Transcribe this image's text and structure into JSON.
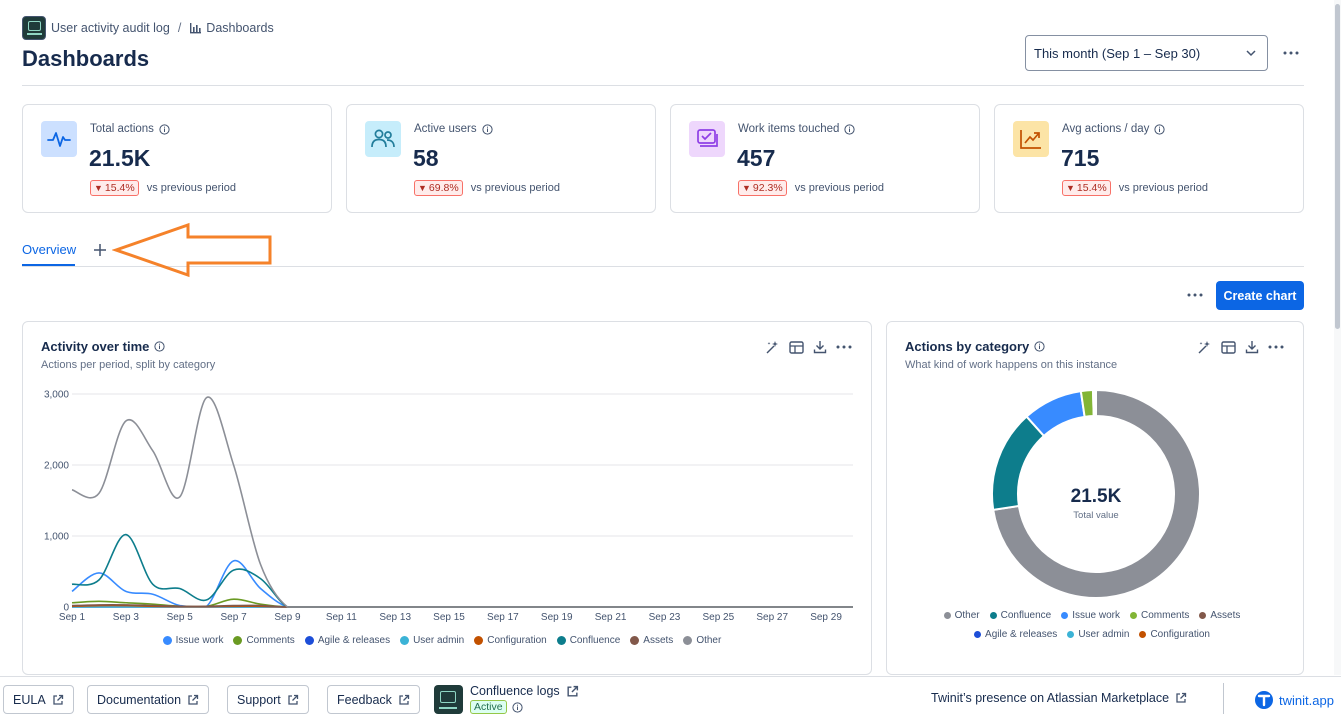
{
  "breadcrumb": {
    "app": "User activity audit log",
    "separator": "/",
    "current": "Dashboards"
  },
  "page": {
    "title": "Dashboards"
  },
  "date_range": {
    "selected": "This month (Sep 1 – Sep 30)"
  },
  "kpis": [
    {
      "label": "Total actions",
      "value": "21.5K",
      "delta": "15.4%",
      "delta_direction": "down",
      "comparison": "vs previous period",
      "icon": "activity-pulse-icon",
      "icon_bg": "#cce0ff",
      "icon_color": "#0c66e4"
    },
    {
      "label": "Active users",
      "value": "58",
      "delta": "69.8%",
      "delta_direction": "down",
      "comparison": "vs previous period",
      "icon": "people-icon",
      "icon_bg": "#c6edfb",
      "icon_color": "#227d9b"
    },
    {
      "label": "Work items touched",
      "value": "457",
      "delta": "92.3%",
      "delta_direction": "down",
      "comparison": "vs previous period",
      "icon": "work-items-icon",
      "icon_bg": "#eed7fc",
      "icon_color": "#8f3fe6"
    },
    {
      "label": "Avg actions / day",
      "value": "715",
      "delta": "15.4%",
      "delta_direction": "down",
      "comparison": "vs previous period",
      "icon": "trend-up-icon",
      "icon_bg": "#fce4a6",
      "icon_color": "#c25100"
    }
  ],
  "tabs": [
    {
      "label": "Overview",
      "active": true
    }
  ],
  "toolbar": {
    "create_chart_label": "Create chart"
  },
  "colors": {
    "accent": "#0c66e4",
    "annotation_arrow": "#f5822a"
  },
  "chart_data": [
    {
      "type": "line",
      "title": "Activity over time",
      "subtitle": "Actions per period, split by category",
      "x": [
        "Sep 1",
        "Sep 2",
        "Sep 3",
        "Sep 4",
        "Sep 5",
        "Sep 6",
        "Sep 7",
        "Sep 8",
        "Sep 9",
        "Sep 10",
        "Sep 11",
        "Sep 12",
        "Sep 13",
        "Sep 14",
        "Sep 15",
        "Sep 16",
        "Sep 17",
        "Sep 18",
        "Sep 19",
        "Sep 20",
        "Sep 21",
        "Sep 22",
        "Sep 23",
        "Sep 24",
        "Sep 25",
        "Sep 26",
        "Sep 27",
        "Sep 28",
        "Sep 29",
        "Sep 30"
      ],
      "x_tick_labels": [
        "Sep 1",
        "Sep 3",
        "Sep 5",
        "Sep 7",
        "Sep 9",
        "Sep 11",
        "Sep 13",
        "Sep 15",
        "Sep 17",
        "Sep 19",
        "Sep 21",
        "Sep 23",
        "Sep 25",
        "Sep 27",
        "Sep 29"
      ],
      "y_ticks": [
        0,
        1000,
        2000,
        3000
      ],
      "y_tick_labels": [
        "0",
        "1,000",
        "2,000",
        "3,000"
      ],
      "ylim": [
        0,
        3000
      ],
      "grid": true,
      "legend_position": "bottom",
      "series": [
        {
          "name": "Issue work",
          "color": "#388bff",
          "values": [
            220,
            480,
            220,
            180,
            20,
            10,
            650,
            260,
            0,
            0,
            0,
            0,
            0,
            0,
            0,
            0,
            0,
            0,
            0,
            0,
            0,
            0,
            0,
            0,
            0,
            0,
            0,
            0,
            0,
            0
          ]
        },
        {
          "name": "Comments",
          "color": "#6a9a23",
          "values": [
            60,
            80,
            60,
            40,
            10,
            10,
            110,
            40,
            0,
            0,
            0,
            0,
            0,
            0,
            0,
            0,
            0,
            0,
            0,
            0,
            0,
            0,
            0,
            0,
            0,
            0,
            0,
            0,
            0,
            0
          ]
        },
        {
          "name": "Agile & releases",
          "color": "#1d4ed8",
          "values": [
            0,
            0,
            0,
            0,
            0,
            0,
            0,
            0,
            0,
            0,
            0,
            0,
            0,
            0,
            0,
            0,
            0,
            0,
            0,
            0,
            0,
            0,
            0,
            0,
            0,
            0,
            0,
            0,
            0,
            0
          ]
        },
        {
          "name": "User admin",
          "color": "#3bb3d6",
          "values": [
            0,
            0,
            0,
            0,
            0,
            0,
            0,
            0,
            0,
            0,
            0,
            0,
            0,
            0,
            0,
            0,
            0,
            0,
            0,
            0,
            0,
            0,
            0,
            0,
            0,
            0,
            0,
            0,
            0,
            0
          ]
        },
        {
          "name": "Configuration",
          "color": "#c25100",
          "values": [
            10,
            20,
            20,
            10,
            5,
            5,
            10,
            10,
            0,
            0,
            0,
            0,
            0,
            0,
            0,
            0,
            0,
            0,
            0,
            0,
            0,
            0,
            0,
            0,
            0,
            0,
            0,
            0,
            0,
            0
          ]
        },
        {
          "name": "Confluence",
          "color": "#0d7d8c",
          "values": [
            320,
            380,
            1020,
            320,
            260,
            100,
            520,
            400,
            0,
            0,
            0,
            0,
            0,
            0,
            0,
            0,
            0,
            0,
            0,
            0,
            0,
            0,
            0,
            0,
            0,
            0,
            0,
            0,
            0,
            0
          ]
        },
        {
          "name": "Assets",
          "color": "#82584a",
          "values": [
            20,
            30,
            30,
            20,
            10,
            10,
            20,
            20,
            0,
            0,
            0,
            0,
            0,
            0,
            0,
            0,
            0,
            0,
            0,
            0,
            0,
            0,
            0,
            0,
            0,
            0,
            0,
            0,
            0,
            0
          ]
        },
        {
          "name": "Other",
          "color": "#8c8f97",
          "values": [
            1650,
            1600,
            2620,
            2200,
            1550,
            2950,
            2000,
            600,
            0,
            0,
            0,
            0,
            0,
            0,
            0,
            0,
            0,
            0,
            0,
            0,
            0,
            0,
            0,
            0,
            0,
            0,
            0,
            0,
            0,
            0
          ]
        }
      ]
    },
    {
      "type": "pie",
      "title": "Actions by category",
      "subtitle": "What kind of work happens on this instance",
      "center_value": "21.5K",
      "center_label": "Total value",
      "legend_position": "bottom",
      "slices": [
        {
          "name": "Other",
          "value": 15600,
          "color": "#8c8f97"
        },
        {
          "name": "Confluence",
          "value": 3400,
          "color": "#0d7d8c"
        },
        {
          "name": "Issue work",
          "value": 2000,
          "color": "#388bff"
        },
        {
          "name": "Comments",
          "value": 400,
          "color": "#82b536"
        },
        {
          "name": "Assets",
          "value": 40,
          "color": "#82584a"
        },
        {
          "name": "Agile & releases",
          "value": 20,
          "color": "#1d4ed8"
        },
        {
          "name": "User admin",
          "value": 20,
          "color": "#3bb3d6"
        },
        {
          "name": "Configuration",
          "value": 20,
          "color": "#c25100"
        }
      ]
    }
  ],
  "footer": {
    "links": [
      "EULA",
      "Documentation",
      "Support",
      "Feedback"
    ],
    "app_name": "Confluence logs",
    "app_status": "Active",
    "marketplace": "Twinit’s presence on Atlassian Marketplace",
    "brand": "twinit.app"
  }
}
